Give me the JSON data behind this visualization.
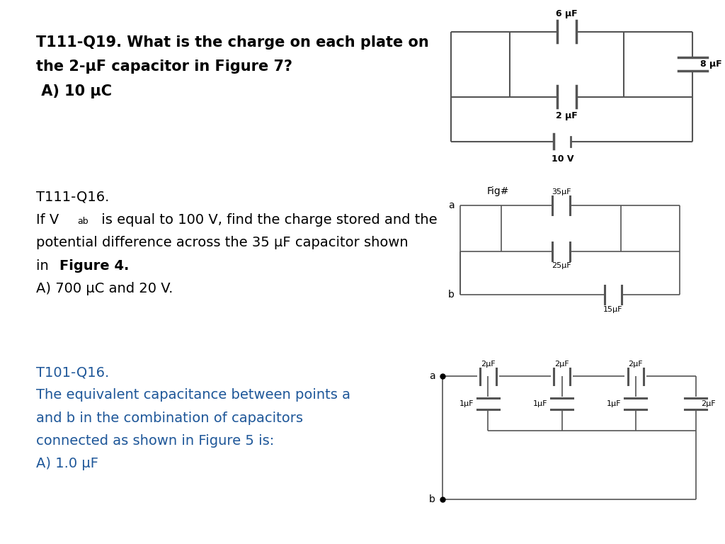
{
  "bg_color": "#ffffff",
  "line_color": "#555555",
  "black": "#000000",
  "blue": "#1E5799",
  "section1": {
    "line1": "T111-Q19. What is the charge on each plate on",
    "line2": "the 2-μF capacitor in Figure 7?",
    "line3": " A) 10 μC",
    "fontsize": 15
  },
  "section2": {
    "line1": "T111-Q16.",
    "line2_a": "If V",
    "line2_sub": "ab",
    "line2_b": " is equal to 100 V, find the charge stored and the",
    "line3": "potential difference across the 35 μF capacitor shown",
    "line4_plain": "in ",
    "line4_bold": "Figure 4.",
    "line5": "A) 700 μC and 20 V.",
    "fontsize": 14
  },
  "section3": {
    "line1": "T101-Q16.",
    "line2": "The equivalent capacitance between points a",
    "line3": "and b in the combination of capacitors",
    "line4": "connected as shown in Figure 5 is:",
    "line5": "A) 1.0 μF",
    "fontsize": 14
  }
}
